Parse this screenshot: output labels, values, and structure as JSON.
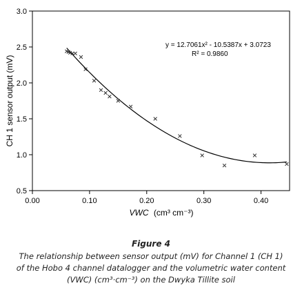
{
  "chart_data": {
    "type": "scatter",
    "title": "",
    "xlabel_main": "VWC",
    "xlabel_units": "(cm³ cm⁻³)",
    "ylabel": "CH 1 sensor output (mV)",
    "xlim": [
      0,
      0.45
    ],
    "ylim": [
      0.5,
      3.0
    ],
    "x_ticks": [
      "0.00",
      "0.10",
      "0.20",
      "0.30",
      "0.40"
    ],
    "y_ticks": [
      "0.5",
      "1.0",
      "1.5",
      "2.0",
      "2.5",
      "3.0"
    ],
    "grid": false,
    "series": [
      {
        "marker": "x",
        "points": [
          {
            "x": 0.06,
            "y": 2.44
          },
          {
            "x": 0.063,
            "y": 2.43
          },
          {
            "x": 0.066,
            "y": 2.42
          },
          {
            "x": 0.07,
            "y": 2.41
          },
          {
            "x": 0.075,
            "y": 2.41
          },
          {
            "x": 0.085,
            "y": 2.36
          },
          {
            "x": 0.093,
            "y": 2.19
          },
          {
            "x": 0.108,
            "y": 2.03
          },
          {
            "x": 0.12,
            "y": 1.9
          },
          {
            "x": 0.128,
            "y": 1.86
          },
          {
            "x": 0.135,
            "y": 1.81
          },
          {
            "x": 0.15,
            "y": 1.75
          },
          {
            "x": 0.172,
            "y": 1.67
          },
          {
            "x": 0.215,
            "y": 1.5
          },
          {
            "x": 0.258,
            "y": 1.26
          },
          {
            "x": 0.297,
            "y": 0.99
          },
          {
            "x": 0.336,
            "y": 0.85
          },
          {
            "x": 0.389,
            "y": 0.99
          },
          {
            "x": 0.445,
            "y": 0.87
          }
        ]
      }
    ],
    "trendline": {
      "type": "polynomial",
      "coefficients": [
        12.7061,
        -10.5387,
        3.0723
      ],
      "x_range": [
        0.06,
        0.445
      ],
      "equation_label": "y = 12.7061x² - 10.5387x + 3.0723",
      "r2_label": "R² = 0.9860"
    }
  },
  "caption": {
    "figure_label": "Figure 4",
    "line1": "The relationship between sensor output (mV) for Channel 1 (CH 1)",
    "line2": "of the Hobo 4 channel datalogger and the volumetric water content",
    "line3": "(VWC) (cm³·cm⁻³) on the Dwyka Tillite soil"
  }
}
